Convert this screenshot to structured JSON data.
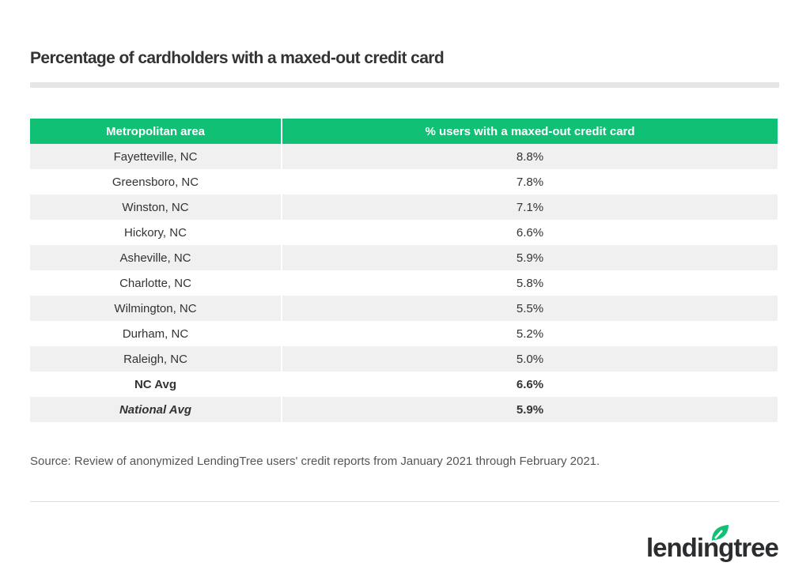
{
  "title": "Percentage of cardholders with a maxed-out credit card",
  "table": {
    "headers": [
      "Metropolitan area",
      "% users with a maxed-out credit card"
    ],
    "rows": [
      [
        "Fayetteville, NC",
        "8.8%"
      ],
      [
        "Greensboro, NC",
        "7.8%"
      ],
      [
        "Winston, NC",
        "7.1%"
      ],
      [
        "Hickory, NC",
        "6.6%"
      ],
      [
        "Asheville, NC",
        "5.9%"
      ],
      [
        "Charlotte, NC",
        "5.8%"
      ],
      [
        "Wilmington, NC",
        "5.5%"
      ],
      [
        "Durham, NC",
        "5.2%"
      ],
      [
        "Raleigh, NC",
        "5.0%"
      ],
      [
        "NC Avg",
        "6.6%"
      ],
      [
        "National Avg",
        "5.9%"
      ]
    ]
  },
  "source": "Source: Review of anonymized LendingTree users' credit reports from January 2021 through February 2021.",
  "logo": "lendingtree",
  "colors": {
    "header": "#10c075",
    "stripe": "#f0f0f0"
  }
}
